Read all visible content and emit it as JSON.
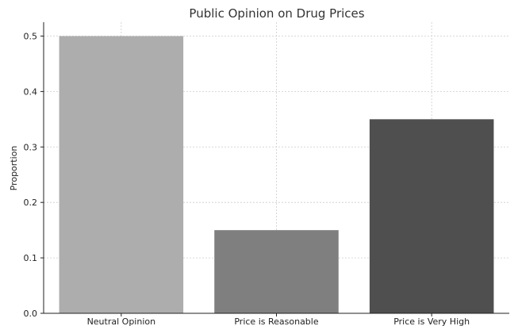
{
  "chart_data": {
    "type": "bar",
    "title": "Public Opinion on Drug Prices",
    "xlabel": "",
    "ylabel": "Proportion",
    "categories": [
      "Neutral Opinion",
      "Price is Reasonable",
      "Price is Very High"
    ],
    "values": [
      0.5,
      0.15,
      0.35
    ],
    "colors": [
      "#adadad",
      "#7f7f7f",
      "#4f4f4f"
    ],
    "ylim": [
      0,
      0.525
    ],
    "yticks": [
      0.0,
      0.1,
      0.2,
      0.3,
      0.4,
      0.5
    ],
    "ytick_labels": [
      "0.0",
      "0.1",
      "0.2",
      "0.3",
      "0.4",
      "0.5"
    ],
    "grid": true,
    "legend": "none"
  }
}
